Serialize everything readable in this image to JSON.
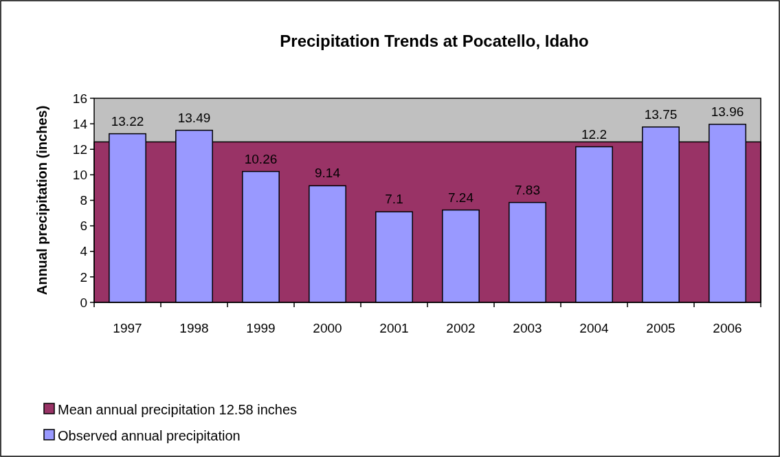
{
  "chart_data": {
    "type": "bar",
    "title": "Precipitation Trends at Pocatello, Idaho",
    "ylabel": "Annual precipitation (inches)",
    "categories": [
      "1997",
      "1998",
      "1999",
      "2000",
      "2001",
      "2002",
      "2003",
      "2004",
      "2005",
      "2006"
    ],
    "bands": [
      {
        "axis": "y",
        "from": 0,
        "to": 12.58,
        "label": "Mean annual precipitation 12.58 inches",
        "color": "#993366"
      }
    ],
    "series": [
      {
        "name": "Observed annual precipitation",
        "color": "#9999ff",
        "values": [
          13.22,
          13.49,
          10.26,
          9.14,
          7.1,
          7.24,
          7.83,
          12.2,
          13.75,
          13.96
        ],
        "value_labels": [
          "13.22",
          "13.49",
          "10.26",
          "9.14",
          "7.1",
          "7.24",
          "7.83",
          "12.2",
          "13.75",
          "13.96"
        ]
      }
    ],
    "ylim": [
      0,
      16
    ],
    "yticks": [
      0,
      2,
      4,
      6,
      8,
      10,
      12,
      14,
      16
    ],
    "legend": "bottom left"
  }
}
